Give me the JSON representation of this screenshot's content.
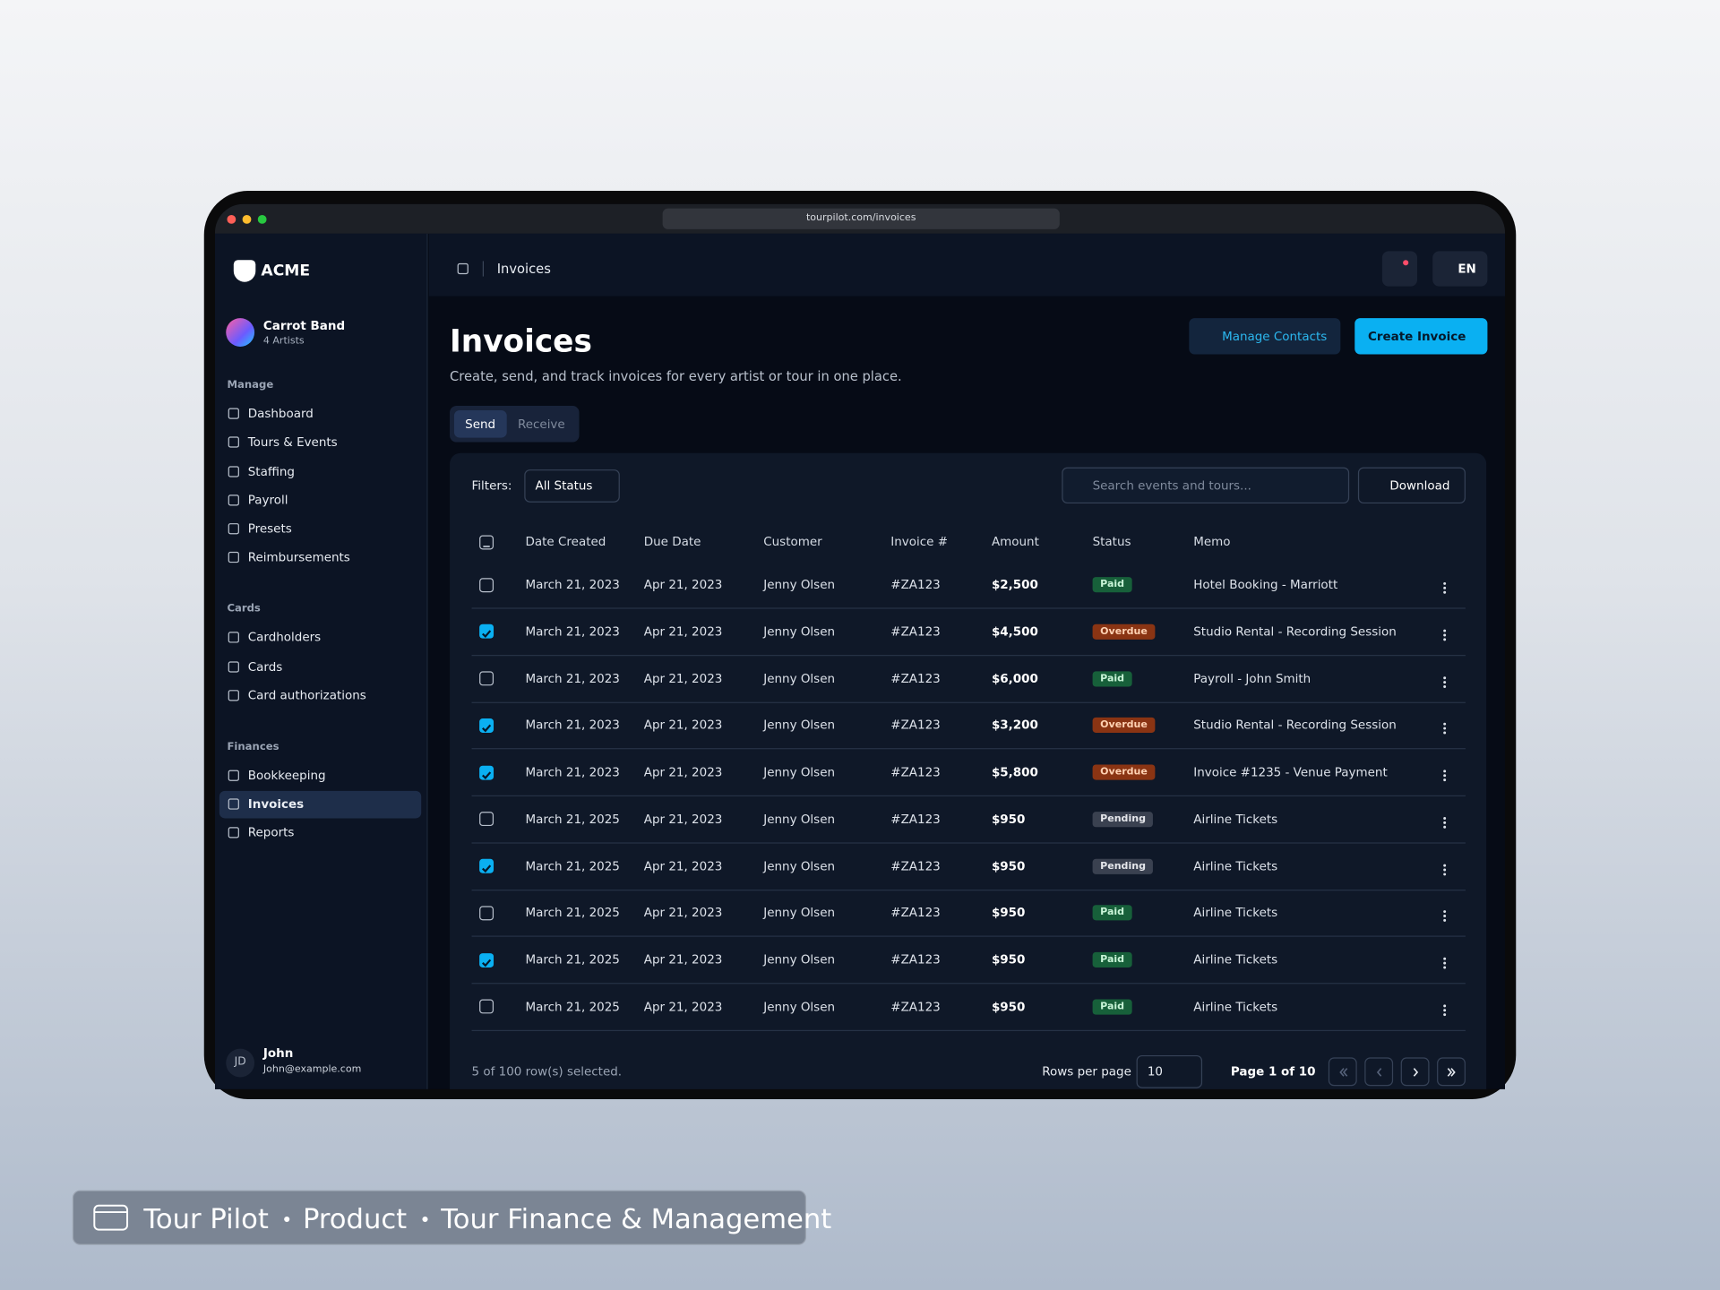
{
  "browser": {
    "url": "tourpilot.com/invoices"
  },
  "sidebar": {
    "brand": "ACME",
    "team": {
      "name": "Carrot Band",
      "subtitle": "4 Artists"
    },
    "sections": [
      {
        "title": "Manage",
        "items": [
          "Dashboard",
          "Tours & Events",
          "Staffing",
          "Payroll",
          "Presets",
          "Reimbursements"
        ]
      },
      {
        "title": "Cards",
        "items": [
          "Cardholders",
          "Cards",
          "Card authorizations"
        ]
      },
      {
        "title": "Finances",
        "items": [
          "Bookkeeping",
          "Invoices",
          "Reports"
        ],
        "active": 1
      }
    ],
    "user": {
      "initials": "JD",
      "name": "John",
      "email": "John@example.com"
    }
  },
  "topbar": {
    "breadcrumb": "Invoices",
    "language": "EN"
  },
  "page": {
    "title": "Invoices",
    "subtitle": "Create, send, and track invoices for every artist or tour in one place.",
    "buttons": [
      "Manage Contacts",
      "Create Invoice"
    ],
    "tabs": [
      "Send",
      "Receive"
    ]
  },
  "table": {
    "filter_label": "Filters:",
    "filter_value": "All Status",
    "search_placeholder": "Search events and tours...",
    "download": "Download",
    "columns": [
      "Date Created",
      "Due Date",
      "Customer",
      "Invoice #",
      "Amount",
      "Status",
      "Memo"
    ],
    "tones": {
      "green": {
        "bg": "#17603a",
        "fg": "#c9f5d8"
      },
      "orange": {
        "bg": "#8a3413",
        "fg": "#ffd2b3"
      },
      "gray": {
        "bg": "#3a4150",
        "fg": "#e5e7eb"
      }
    },
    "rows": [
      {
        "checked": false,
        "tone": "green",
        "cells": [
          "March 21, 2023",
          "Apr 21, 2023",
          "Jenny Olsen",
          "#ZA123",
          "$2,500",
          "Paid",
          "Hotel Booking - Marriott"
        ]
      },
      {
        "checked": true,
        "tone": "orange",
        "cells": [
          "March 21, 2023",
          "Apr 21, 2023",
          "Jenny Olsen",
          "#ZA123",
          "$4,500",
          "Overdue",
          "Studio Rental - Recording Session"
        ]
      },
      {
        "checked": false,
        "tone": "green",
        "cells": [
          "March 21, 2023",
          "Apr 21, 2023",
          "Jenny Olsen",
          "#ZA123",
          "$6,000",
          "Paid",
          "Payroll - John Smith"
        ]
      },
      {
        "checked": true,
        "tone": "orange",
        "cells": [
          "March 21, 2023",
          "Apr 21, 2023",
          "Jenny Olsen",
          "#ZA123",
          "$3,200",
          "Overdue",
          "Studio Rental - Recording Session"
        ]
      },
      {
        "checked": true,
        "tone": "orange",
        "cells": [
          "March 21, 2023",
          "Apr 21, 2023",
          "Jenny Olsen",
          "#ZA123",
          "$5,800",
          "Overdue",
          "Invoice #1235 - Venue Payment"
        ]
      },
      {
        "checked": false,
        "tone": "gray",
        "cells": [
          "March 21, 2025",
          "Apr 21, 2023",
          "Jenny Olsen",
          "#ZA123",
          "$950",
          "Pending",
          "Airline Tickets"
        ]
      },
      {
        "checked": true,
        "tone": "gray",
        "cells": [
          "March 21, 2025",
          "Apr 21, 2023",
          "Jenny Olsen",
          "#ZA123",
          "$950",
          "Pending",
          "Airline Tickets"
        ]
      },
      {
        "checked": false,
        "tone": "green",
        "cells": [
          "March 21, 2025",
          "Apr 21, 2023",
          "Jenny Olsen",
          "#ZA123",
          "$950",
          "Paid",
          "Airline Tickets"
        ]
      },
      {
        "checked": true,
        "tone": "green",
        "cells": [
          "March 21, 2025",
          "Apr 21, 2023",
          "Jenny Olsen",
          "#ZA123",
          "$950",
          "Paid",
          "Airline Tickets"
        ]
      },
      {
        "checked": false,
        "tone": "green",
        "cells": [
          "March 21, 2025",
          "Apr 21, 2023",
          "Jenny Olsen",
          "#ZA123",
          "$950",
          "Paid",
          "Airline Tickets"
        ]
      }
    ],
    "footer": {
      "selection": "5 of 100 row(s) selected.",
      "rows_per_page_label": "Rows per page",
      "rows_per_page": 10,
      "page": "Page 1 of 10"
    }
  },
  "caption": {
    "parts": [
      "Tour Pilot",
      "Product",
      "Tour Finance & Management"
    ]
  }
}
